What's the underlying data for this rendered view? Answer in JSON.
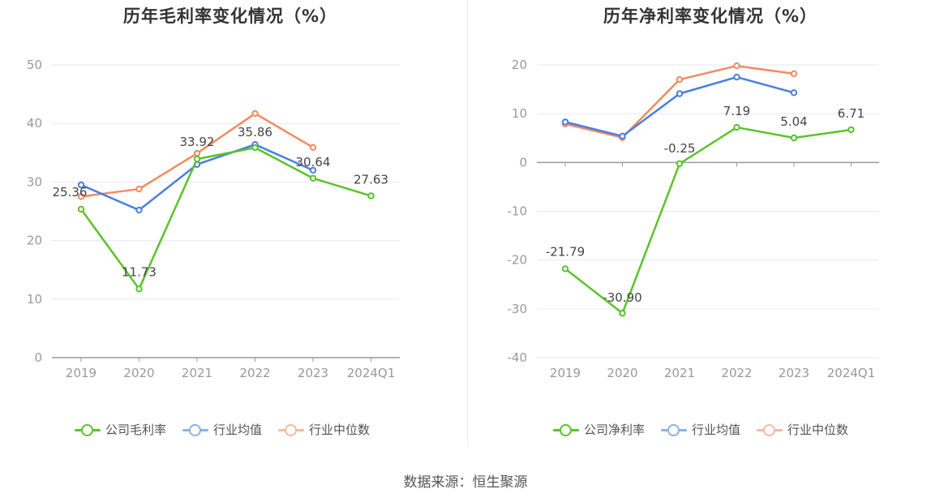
{
  "source_text": "数据来源：恒生聚源",
  "colors": {
    "company": "#5ac32b",
    "industry_avg": "#4a7fe0",
    "industry_median": "#f28b5e",
    "legend_industry_avg": "#8db0ee",
    "legend_industry_median": "#f7b9a0",
    "grid": "#e6e9f2",
    "axis": "#999999"
  },
  "chart_data": [
    {
      "id": "gross",
      "type": "line",
      "title": "历年毛利率变化情况（%）",
      "categories": [
        "2019",
        "2020",
        "2021",
        "2022",
        "2023",
        "2024Q1"
      ],
      "yticks": [
        "0",
        "10",
        "20",
        "30",
        "40",
        "50"
      ],
      "ylim": [
        0,
        50
      ],
      "series": [
        {
          "name": "公司毛利率",
          "key": "company",
          "values": [
            25.36,
            11.73,
            33.92,
            35.86,
            30.64,
            27.63
          ],
          "labels": [
            "25.36",
            "11.73",
            "33.92",
            "35.86",
            "30.64",
            "27.63"
          ]
        },
        {
          "name": "行业均值",
          "key": "industry_avg",
          "values": [
            29.5,
            25.2,
            33.0,
            36.4,
            32.0,
            null
          ]
        },
        {
          "name": "行业中位数",
          "key": "industry_median",
          "values": [
            27.5,
            28.8,
            34.9,
            41.7,
            35.9,
            null
          ]
        }
      ],
      "legend": [
        "公司毛利率",
        "行业均值",
        "行业中位数"
      ]
    },
    {
      "id": "net",
      "type": "line",
      "title": "历年净利率变化情况（%）",
      "categories": [
        "2019",
        "2020",
        "2021",
        "2022",
        "2023",
        "2024Q1"
      ],
      "yticks": [
        "-40",
        "-30",
        "-20",
        "-10",
        "0",
        "10",
        "20"
      ],
      "ylim": [
        -40,
        20
      ],
      "series": [
        {
          "name": "公司净利率",
          "key": "company",
          "values": [
            -21.79,
            -30.9,
            -0.25,
            7.19,
            5.04,
            6.71
          ],
          "labels": [
            "-21.79",
            "-30.90",
            "-0.25",
            "7.19",
            "5.04",
            "6.71"
          ]
        },
        {
          "name": "行业均值",
          "key": "industry_avg",
          "values": [
            8.3,
            5.4,
            14.1,
            17.5,
            14.3,
            null
          ]
        },
        {
          "name": "行业中位数",
          "key": "industry_median",
          "values": [
            7.9,
            5.1,
            17.0,
            19.8,
            18.2,
            null
          ]
        }
      ],
      "legend": [
        "公司净利率",
        "行业均值",
        "行业中位数"
      ]
    }
  ]
}
